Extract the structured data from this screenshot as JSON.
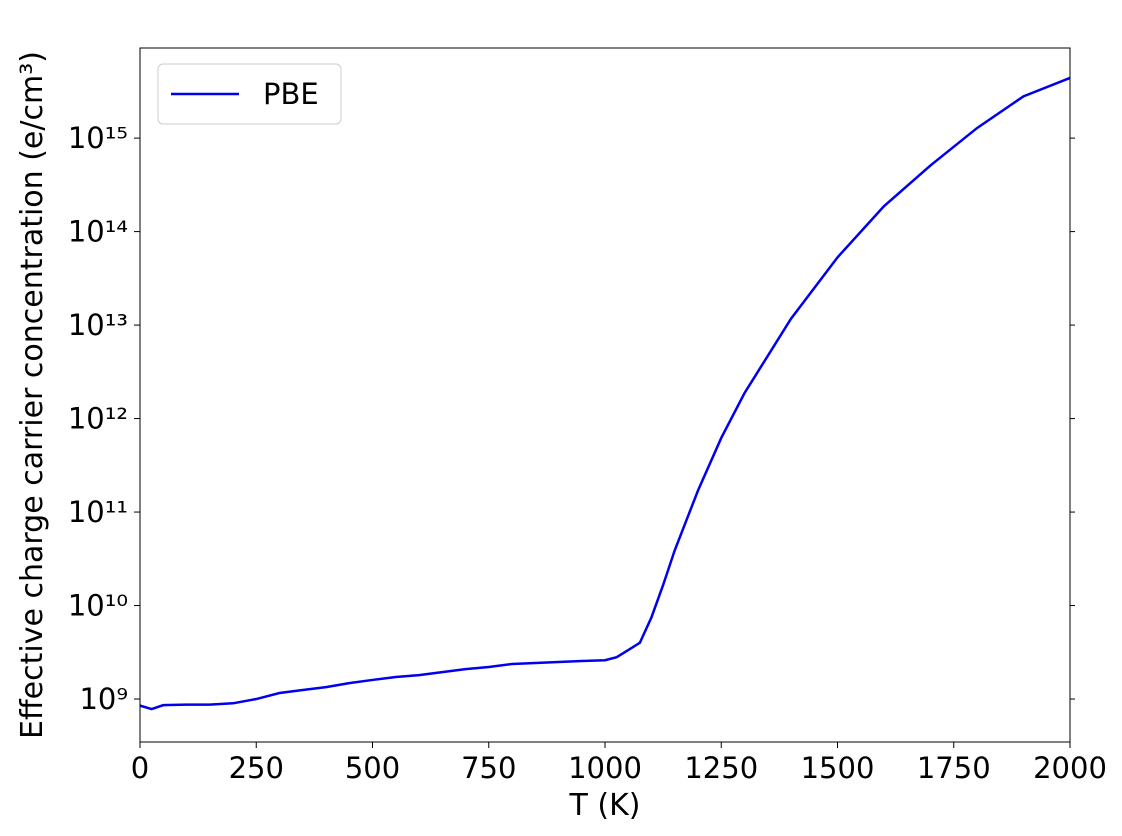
{
  "chart_data": {
    "type": "line",
    "xlabel": "T (K)",
    "ylabel": "Effective charge carrier concentration (e/cm³)",
    "log_y": true,
    "xlim": [
      0,
      2000
    ],
    "xticks": [
      0,
      250,
      500,
      750,
      1000,
      1250,
      1500,
      1750,
      2000
    ],
    "ylim": [
      347000000,
      9200000000000000
    ],
    "yticks": [
      {
        "value": 1000000000,
        "label": "10⁹"
      },
      {
        "value": 10000000000,
        "label": "10¹⁰"
      },
      {
        "value": 100000000000,
        "label": "10¹¹"
      },
      {
        "value": 1000000000000,
        "label": "10¹²"
      },
      {
        "value": 10000000000000,
        "label": "10¹³"
      },
      {
        "value": 100000000000000,
        "label": "10¹⁴"
      },
      {
        "value": 1000000000000000,
        "label": "10¹⁵"
      }
    ],
    "legend": "upper left",
    "x": [
      0,
      25,
      50,
      100,
      150,
      200,
      250,
      300,
      350,
      400,
      450,
      500,
      550,
      600,
      650,
      700,
      750,
      800,
      850,
      900,
      950,
      1000,
      1025,
      1050,
      1075,
      1100,
      1125,
      1150,
      1200,
      1250,
      1300,
      1400,
      1500,
      1600,
      1700,
      1800,
      1900,
      2000
    ],
    "series": [
      {
        "name": "PBE",
        "color": "#0000ee",
        "values": [
          850000000,
          780000000,
          860000000,
          870000000,
          870000000,
          900000000,
          1000000000,
          1160000000,
          1250000000,
          1340000000,
          1480000000,
          1600000000,
          1720000000,
          1800000000,
          1940000000,
          2090000000,
          2200000000,
          2370000000,
          2430000000,
          2490000000,
          2550000000,
          2600000000,
          2800000000,
          3340000000,
          4000000000,
          7500000000,
          16600000000,
          39000000000,
          170000000000,
          620000000000,
          1870000000000,
          11700000000000,
          53000000000000,
          187000000000000,
          510000000000000,
          1280000000000000,
          2800000000000000,
          4400000000000000
        ]
      }
    ]
  }
}
